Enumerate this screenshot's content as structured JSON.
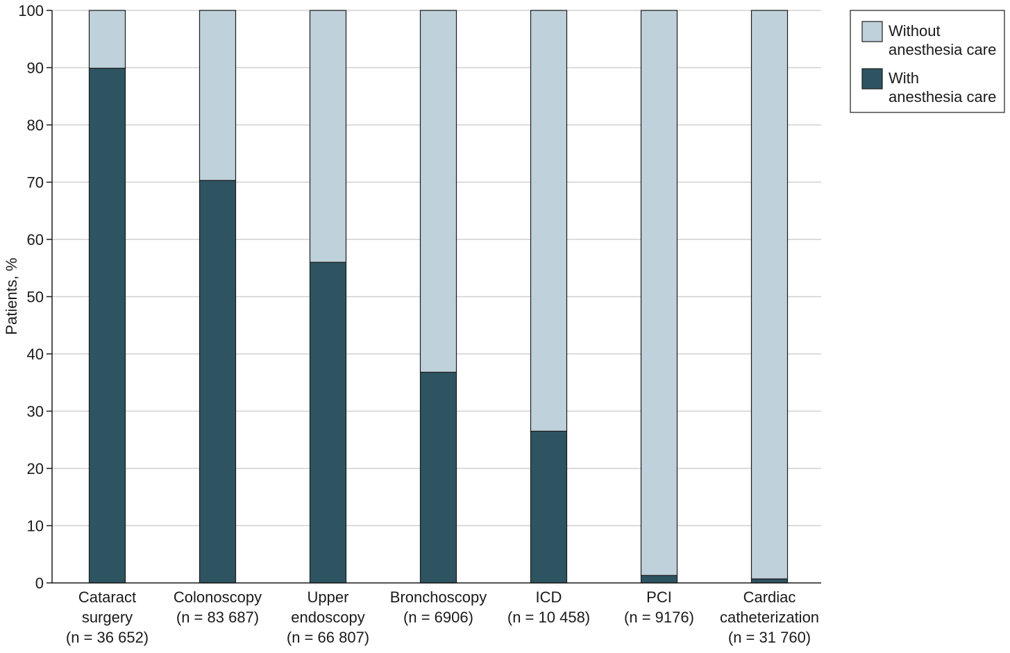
{
  "chart_data": {
    "type": "bar",
    "stacked": true,
    "ylabel": "Patients, %",
    "xlabel": "",
    "ylim": [
      0,
      100
    ],
    "yticks": [
      0,
      10,
      20,
      30,
      40,
      50,
      60,
      70,
      80,
      90,
      100
    ],
    "grid": "horizontal",
    "legend_position": "top-right",
    "categories": [
      [
        "Cataract",
        "surgery",
        "(n = 36 652)"
      ],
      [
        "Colonoscopy",
        "(n = 83 687)"
      ],
      [
        "Upper",
        "endoscopy",
        "(n = 66 807)"
      ],
      [
        "Bronchoscopy",
        "(n = 6906)"
      ],
      [
        "ICD",
        "(n = 10 458)"
      ],
      [
        "PCI",
        "(n = 9176)"
      ],
      [
        "Cardiac",
        "catheterization",
        "(n = 31 760)"
      ]
    ],
    "series": [
      {
        "name": [
          "With",
          "anesthesia care"
        ],
        "color": "#2e5462",
        "values": [
          89.9,
          70.3,
          56.0,
          36.8,
          26.5,
          1.3,
          0.7
        ]
      },
      {
        "name": [
          "Without",
          "anesthesia care"
        ],
        "color": "#bfd1db",
        "values": [
          10.1,
          29.7,
          44.0,
          63.2,
          73.5,
          98.7,
          99.3
        ]
      }
    ],
    "legend_order": [
      1,
      0
    ]
  }
}
